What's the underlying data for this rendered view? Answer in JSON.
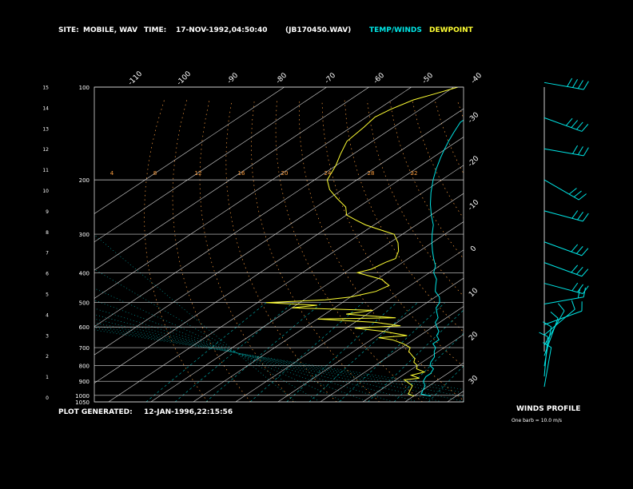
{
  "header": {
    "site_label": "SITE:",
    "site_value": "MOBILE, WAV",
    "time_label": "TIME:",
    "time_value": "17-NOV-1992,04:50:40",
    "file": "(JB170450.WAV)",
    "legend_temp": "TEMP/WINDS",
    "legend_dew": "DEWPOINT"
  },
  "footer": {
    "generated_label": "PLOT GENERATED:",
    "generated_value": "12-JAN-1996,22:15:56",
    "winds_title": "WINDS PROFILE",
    "winds_note": "One barb = 10.0 m/s"
  },
  "colors": {
    "temp": "#00e5e5",
    "dewpoint": "#ffff33",
    "isobar": "#d8d8d8",
    "isotherm": "#d8d8d8",
    "dry_adiabat": "#ff9f3f",
    "moist_adiabat": "#00b4b4",
    "mixing_ratio": "#00b4b4",
    "text": "#ffffff"
  },
  "chart_data": {
    "type": "line",
    "title": "",
    "xlabel": "",
    "ylabel": "",
    "pressure_ticks": [
      "100",
      "200",
      "300",
      "400",
      "500",
      "600",
      "700",
      "800",
      "900",
      "1000",
      "1050"
    ],
    "height_ticks": [
      "0",
      "1",
      "2",
      "3",
      "4",
      "5",
      "6",
      "7",
      "8",
      "9",
      "10",
      "11",
      "12",
      "13",
      "14",
      "15"
    ],
    "top_temp_labels": [
      "-110",
      "-100",
      "-90",
      "-80",
      "-70",
      "-60",
      "-50",
      "-40"
    ],
    "right_temp_labels": [
      "-30",
      "-20",
      "-10",
      "0",
      "10",
      "20",
      "30"
    ],
    "dry_adiabat_labels": [
      "4",
      "8",
      "12",
      "16",
      "20",
      "24",
      "28",
      "32"
    ],
    "series": [
      {
        "name": "TEMP/WINDS",
        "points": [
          [
            1005,
            24
          ],
          [
            990,
            21
          ],
          [
            960,
            20
          ],
          [
            930,
            19
          ],
          [
            900,
            17
          ],
          [
            870,
            16
          ],
          [
            850,
            16
          ],
          [
            820,
            15
          ],
          [
            800,
            13
          ],
          [
            780,
            12
          ],
          [
            750,
            11
          ],
          [
            720,
            9
          ],
          [
            700,
            8
          ],
          [
            680,
            6
          ],
          [
            660,
            6
          ],
          [
            640,
            4
          ],
          [
            620,
            3
          ],
          [
            600,
            1
          ],
          [
            580,
            -1
          ],
          [
            560,
            -2
          ],
          [
            540,
            -4
          ],
          [
            520,
            -6
          ],
          [
            500,
            -7
          ],
          [
            480,
            -9
          ],
          [
            460,
            -12
          ],
          [
            440,
            -14
          ],
          [
            420,
            -16
          ],
          [
            400,
            -19
          ],
          [
            380,
            -21
          ],
          [
            360,
            -24
          ],
          [
            340,
            -27
          ],
          [
            320,
            -30
          ],
          [
            300,
            -33
          ],
          [
            280,
            -36
          ],
          [
            260,
            -40
          ],
          [
            240,
            -44
          ],
          [
            220,
            -48
          ],
          [
            200,
            -52
          ],
          [
            185,
            -55
          ],
          [
            170,
            -58
          ],
          [
            160,
            -60
          ],
          [
            150,
            -62
          ],
          [
            140,
            -64
          ],
          [
            130,
            -66
          ],
          [
            125,
            -66
          ],
          [
            115,
            -66
          ],
          [
            105,
            -64
          ],
          [
            100,
            -63
          ]
        ]
      },
      {
        "name": "DEWPOINT",
        "points": [
          [
            1005,
            20
          ],
          [
            990,
            18
          ],
          [
            960,
            17
          ],
          [
            930,
            16
          ],
          [
            910,
            14
          ],
          [
            890,
            12
          ],
          [
            880,
            15
          ],
          [
            860,
            12
          ],
          [
            840,
            14
          ],
          [
            820,
            11
          ],
          [
            800,
            10
          ],
          [
            780,
            8
          ],
          [
            760,
            7
          ],
          [
            740,
            5
          ],
          [
            720,
            3
          ],
          [
            700,
            2
          ],
          [
            680,
            -1
          ],
          [
            660,
            -5
          ],
          [
            650,
            -9
          ],
          [
            640,
            -3
          ],
          [
            620,
            -10
          ],
          [
            605,
            -18
          ],
          [
            595,
            -8
          ],
          [
            580,
            -15
          ],
          [
            565,
            -30
          ],
          [
            560,
            -12
          ],
          [
            545,
            -25
          ],
          [
            530,
            -20
          ],
          [
            520,
            -40
          ],
          [
            510,
            -35
          ],
          [
            500,
            -48
          ],
          [
            490,
            -35
          ],
          [
            480,
            -30
          ],
          [
            470,
            -28
          ],
          [
            460,
            -26
          ],
          [
            440,
            -25
          ],
          [
            420,
            -29
          ],
          [
            410,
            -33
          ],
          [
            400,
            -37
          ],
          [
            390,
            -35
          ],
          [
            370,
            -34
          ],
          [
            360,
            -33
          ],
          [
            340,
            -35
          ],
          [
            320,
            -38
          ],
          [
            300,
            -42
          ],
          [
            290,
            -47
          ],
          [
            280,
            -52
          ],
          [
            270,
            -56
          ],
          [
            260,
            -60
          ],
          [
            245,
            -63
          ],
          [
            230,
            -68
          ],
          [
            215,
            -73
          ],
          [
            200,
            -77
          ],
          [
            180,
            -80
          ],
          [
            165,
            -83
          ],
          [
            150,
            -86
          ],
          [
            135,
            -87
          ],
          [
            125,
            -88
          ],
          [
            118,
            -87
          ],
          [
            110,
            -85
          ],
          [
            105,
            -82
          ],
          [
            100,
            -79
          ]
        ]
      }
    ],
    "wind_barbs": [
      {
        "height_km": 15.2,
        "dir_deg": 260,
        "speed_ms": 40
      },
      {
        "height_km": 13.5,
        "dir_deg": 250,
        "speed_ms": 35
      },
      {
        "height_km": 12.0,
        "dir_deg": 260,
        "speed_ms": 30
      },
      {
        "height_km": 10.5,
        "dir_deg": 240,
        "speed_ms": 30
      },
      {
        "height_km": 9.0,
        "dir_deg": 255,
        "speed_ms": 25
      },
      {
        "height_km": 7.5,
        "dir_deg": 250,
        "speed_ms": 25
      },
      {
        "height_km": 6.5,
        "dir_deg": 250,
        "speed_ms": 25
      },
      {
        "height_km": 5.5,
        "dir_deg": 255,
        "speed_ms": 25
      },
      {
        "height_km": 4.5,
        "dir_deg": 280,
        "speed_ms": 20
      },
      {
        "height_km": 3.5,
        "dir_deg": 290,
        "speed_ms": 10
      },
      {
        "height_km": 3.0,
        "dir_deg": 310,
        "speed_ms": 10
      },
      {
        "height_km": 2.5,
        "dir_deg": 330,
        "speed_ms": 10
      },
      {
        "height_km": 2.0,
        "dir_deg": 340,
        "speed_ms": 10
      },
      {
        "height_km": 1.5,
        "dir_deg": 350,
        "speed_ms": 10
      },
      {
        "height_km": 1.0,
        "dir_deg": 355,
        "speed_ms": 10
      },
      {
        "height_km": 0.5,
        "dir_deg": 350,
        "speed_ms": 10
      }
    ]
  }
}
